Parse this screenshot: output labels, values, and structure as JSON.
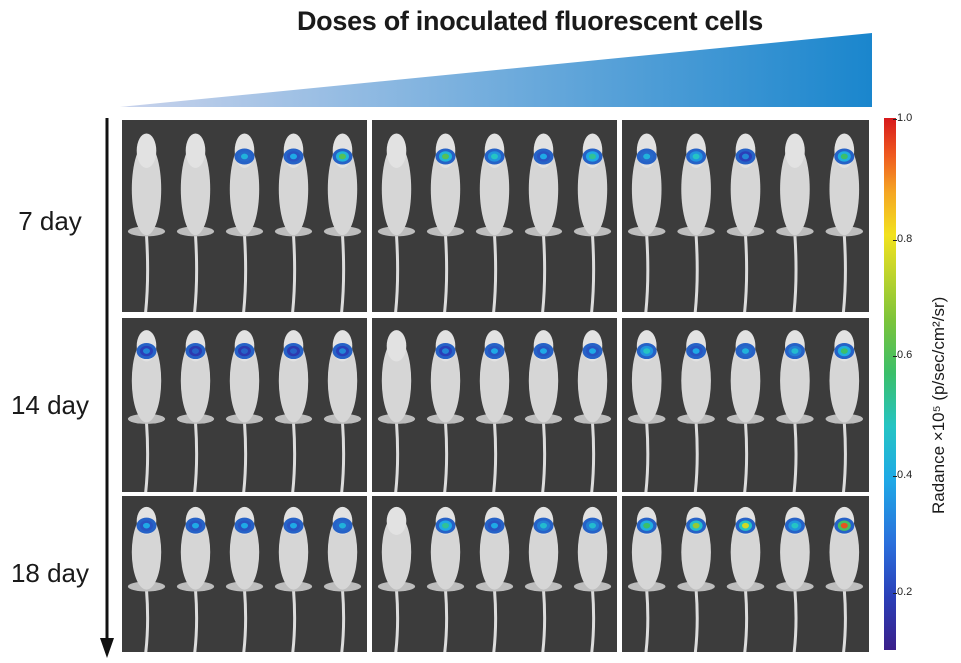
{
  "title": "Doses of inoculated fluorescent cells",
  "rows": [
    {
      "label": "7 day",
      "panels": [
        {
          "signals": [
            0,
            0,
            0.35,
            0.3,
            0.6
          ]
        },
        {
          "signals": [
            0,
            0.6,
            0.45,
            0.3,
            0.5
          ]
        },
        {
          "signals": [
            0.35,
            0.45,
            0.25,
            0,
            0.55
          ]
        }
      ]
    },
    {
      "label": "14 day",
      "panels": [
        {
          "signals": [
            0.25,
            0.2,
            0.2,
            0.2,
            0.25
          ]
        },
        {
          "signals": [
            0,
            0.25,
            0.3,
            0.3,
            0.3
          ]
        },
        {
          "signals": [
            0.45,
            0.3,
            0.35,
            0.4,
            0.55
          ]
        }
      ]
    },
    {
      "label": "18 day",
      "panels": [
        {
          "signals": [
            0.3,
            0.3,
            0.3,
            0.3,
            0.35
          ]
        },
        {
          "signals": [
            0,
            0.5,
            0.3,
            0.4,
            0.4
          ]
        },
        {
          "signals": [
            0.55,
            0.7,
            0.75,
            0.45,
            0.95
          ]
        }
      ]
    }
  ],
  "colorbar": {
    "label": "Radance ×10⁵ (p/sec/cm²/sr)",
    "ticks": [
      "1.0",
      "0.8",
      "0.6",
      "0.4",
      "0.2"
    ]
  },
  "colors": {
    "wedge_start": "#c9d3ec",
    "wedge_end": "#1a86cd",
    "panel_bg": "#3c3c3c"
  }
}
